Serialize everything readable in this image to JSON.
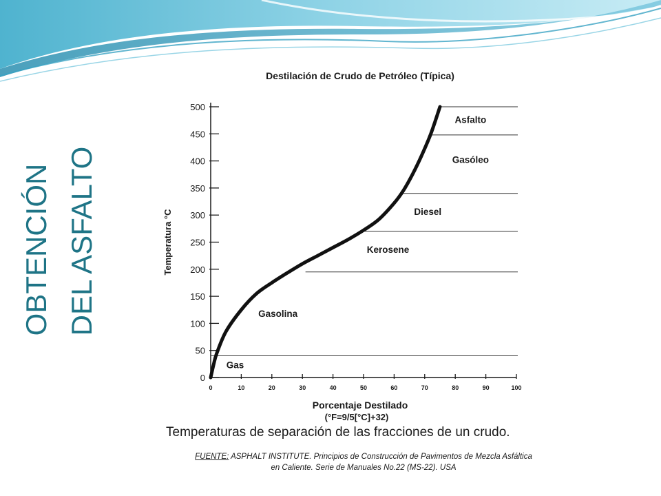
{
  "slide": {
    "title_line1": "OBTENCIÓN",
    "title_line2": "DEL ASFALTO",
    "accent_color": "#1e7486"
  },
  "figure": {
    "caption": "Temperaturas de separación de las fracciones de un    crudo.",
    "source_label": "FUENTE:",
    "source_line1": " ASPHALT INSTITUTE. Principios de Construcción de Pavimentos de Mezcla Asfáltica",
    "source_line2": "en Caliente. Serie de Manuales No.22 (MS-22). USA"
  },
  "chart_data": {
    "type": "line",
    "title": "Destilación de Crudo de Petróleo (Típica)",
    "xlabel": "Porcentaje Destilado",
    "xlabel_note": "(°F=9/5[°C]+32)",
    "ylabel": "Temperatura °C",
    "xlim": [
      0,
      100
    ],
    "ylim": [
      0,
      500
    ],
    "x_ticks": [
      0,
      10,
      20,
      30,
      40,
      50,
      60,
      70,
      80,
      90,
      100
    ],
    "y_ticks": [
      0,
      50,
      100,
      150,
      200,
      250,
      300,
      350,
      400,
      450,
      500
    ],
    "grid": false,
    "series": [
      {
        "x": [
          0,
          1,
          2,
          5,
          10,
          15,
          20,
          25,
          30,
          35,
          40,
          45,
          50,
          55,
          60,
          63,
          66,
          69,
          72,
          75
        ],
        "y": [
          0,
          25,
          45,
          85,
          125,
          155,
          175,
          193,
          210,
          225,
          240,
          255,
          272,
          292,
          322,
          345,
          375,
          410,
          450,
          500
        ]
      }
    ],
    "fraction_boundaries": [
      {
        "y": 40,
        "x_start": 0
      },
      {
        "y": 195,
        "x_start": 31
      },
      {
        "y": 270,
        "x_start": 49
      },
      {
        "y": 340,
        "x_start": 62
      },
      {
        "y": 448,
        "x_start": 72
      },
      {
        "y": 500,
        "x_start": 75
      }
    ],
    "fraction_labels": [
      {
        "text": "Gas",
        "x": 8,
        "y": 17
      },
      {
        "text": "Gasolina",
        "x": 22,
        "y": 112
      },
      {
        "text": "Kerosene",
        "x": 58,
        "y": 230
      },
      {
        "text": "Diesel",
        "x": 71,
        "y": 300
      },
      {
        "text": "Gasóleo",
        "x": 85,
        "y": 396
      },
      {
        "text": "Asfalto",
        "x": 85,
        "y": 470
      }
    ]
  }
}
